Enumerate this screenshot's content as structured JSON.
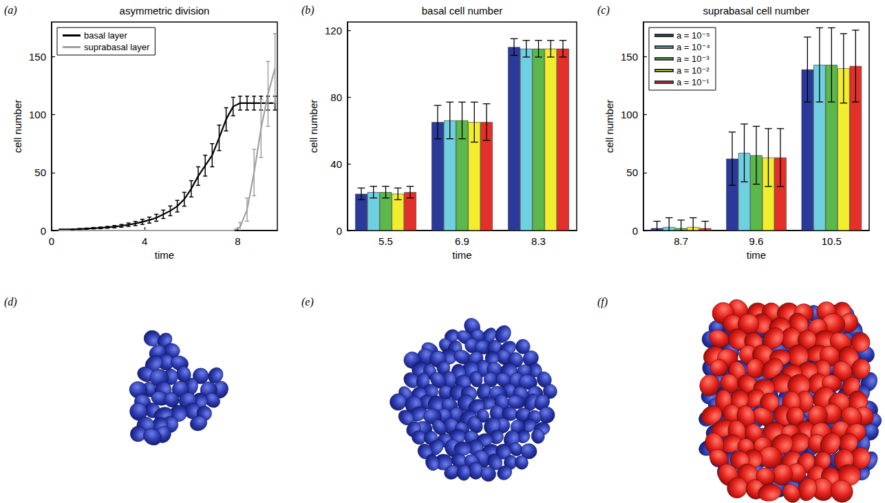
{
  "chart_data": [
    {
      "type": "line",
      "label": "(a)",
      "title": "asymmetric division",
      "x_label": "time",
      "y_label": "cell number",
      "x": [
        0.3,
        0.6,
        0.9,
        1.2,
        1.5,
        1.8,
        2.1,
        2.4,
        2.7,
        3.0,
        3.3,
        3.6,
        3.9,
        4.2,
        4.5,
        4.8,
        5.1,
        5.4,
        5.7,
        6.0,
        6.3,
        6.6,
        6.9,
        7.2,
        7.5,
        7.8,
        8.1,
        8.4,
        8.7,
        9.0,
        9.3,
        9.6
      ],
      "xlim": [
        0,
        9.7
      ],
      "xticks": [
        0,
        4,
        8
      ],
      "ylim": [
        0,
        180
      ],
      "yticks": [
        0,
        50,
        100,
        150
      ],
      "legend": "upper left",
      "series": [
        {
          "name": "basal layer",
          "color": "#000000",
          "values": [
            1,
            1,
            1,
            1.3,
            1.6,
            2,
            2.3,
            2.8,
            3.3,
            4,
            5,
            6,
            7.5,
            9,
            11,
            14,
            17,
            21,
            27,
            36,
            47,
            56,
            65,
            80,
            96,
            107,
            110,
            110,
            110,
            110,
            110,
            110
          ],
          "errors": [
            0,
            0,
            0.3,
            0.4,
            0.5,
            0.6,
            0.7,
            0.8,
            1,
            1.2,
            1.5,
            1.8,
            2.2,
            2.6,
            3,
            3.6,
            4.2,
            5,
            6,
            7,
            8,
            9,
            10,
            11,
            10,
            8,
            6,
            6,
            6,
            6,
            6,
            6
          ]
        },
        {
          "name": "suprabasal layer",
          "color": "#a0a0a0",
          "values": [
            0,
            0,
            0,
            0,
            0,
            0,
            0,
            0,
            0,
            0,
            0,
            0,
            0,
            0,
            0,
            0,
            0,
            0,
            0,
            0,
            0,
            0,
            0,
            0,
            0,
            0,
            3,
            18,
            50,
            88,
            118,
            140
          ],
          "errors": [
            0,
            0,
            0,
            0,
            0,
            0,
            0,
            0,
            0,
            0,
            0,
            0,
            0,
            0,
            0,
            0,
            0,
            0,
            0,
            0,
            0,
            0,
            0,
            0,
            0,
            0,
            4,
            10,
            20,
            25,
            28,
            30
          ]
        }
      ]
    },
    {
      "type": "bar",
      "label": "(b)",
      "title": "basal cell number",
      "x_label": "time",
      "y_label": "cell number",
      "categories": [
        "5.5",
        "6.9",
        "8.3"
      ],
      "ylim": [
        0,
        125
      ],
      "yticks": [
        0,
        40,
        80,
        120
      ],
      "series": [
        {
          "color": "#2b3a9a",
          "values": [
            22,
            65,
            110
          ],
          "errors": [
            3.5,
            10,
            5
          ]
        },
        {
          "color": "#6fd0e0",
          "values": [
            23,
            66,
            109
          ],
          "errors": [
            3.5,
            11,
            5
          ]
        },
        {
          "color": "#5cb84a",
          "values": [
            23,
            66,
            109
          ],
          "errors": [
            3.5,
            11,
            5
          ]
        },
        {
          "color": "#f2ee2e",
          "values": [
            22,
            65,
            109
          ],
          "errors": [
            3.5,
            12,
            5
          ]
        },
        {
          "color": "#e3302a",
          "values": [
            23,
            65,
            109
          ],
          "errors": [
            3.5,
            11,
            5
          ]
        }
      ]
    },
    {
      "type": "bar",
      "label": "(c)",
      "title": "suprabasal cell number",
      "x_label": "time",
      "y_label": "cell number",
      "categories": [
        "8.7",
        "9.6",
        "10.5"
      ],
      "ylim": [
        0,
        180
      ],
      "yticks": [
        0,
        50,
        100,
        150
      ],
      "legend": "upper left",
      "series": [
        {
          "name": "a = 10⁻⁵",
          "color": "#2b3a9a",
          "values": [
            2,
            62,
            139
          ],
          "errors": [
            6,
            23,
            28
          ]
        },
        {
          "name": "a = 10⁻⁴",
          "color": "#6fd0e0",
          "values": [
            3,
            67,
            143
          ],
          "errors": [
            8,
            25,
            32
          ]
        },
        {
          "name": "a = 10⁻³",
          "color": "#5cb84a",
          "values": [
            2,
            65,
            143
          ],
          "errors": [
            7,
            25,
            32
          ]
        },
        {
          "name": "a = 10⁻²",
          "color": "#f2ee2e",
          "values": [
            3,
            63,
            140
          ],
          "errors": [
            8,
            25,
            30
          ]
        },
        {
          "name": "a = 10⁻¹",
          "color": "#e3302a",
          "values": [
            2,
            63,
            142
          ],
          "errors": [
            6,
            25,
            31
          ]
        }
      ]
    }
  ],
  "images": [
    {
      "label": "(d)"
    },
    {
      "label": "(e)"
    },
    {
      "label": "(f)"
    }
  ]
}
